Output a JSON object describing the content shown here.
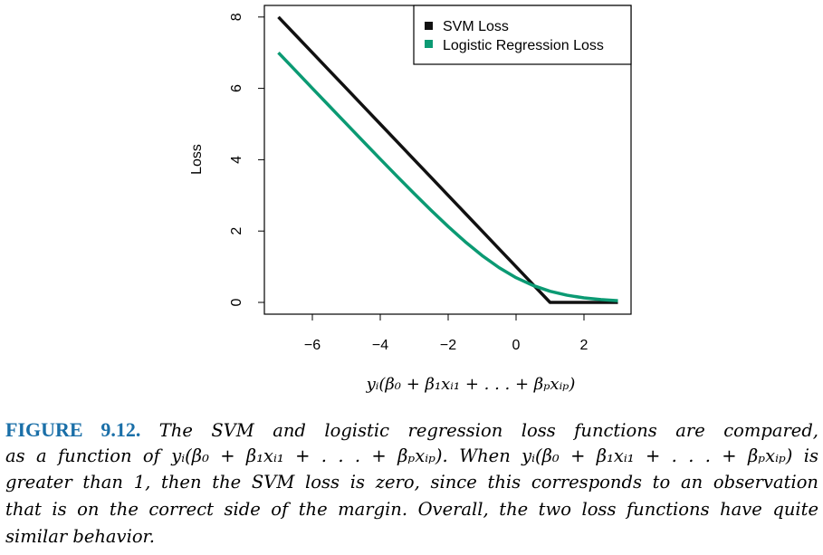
{
  "chart_data": {
    "type": "line",
    "title": "",
    "xlabel": "yᵢ(β₀ + β₁xᵢ₁ + . . . + βₚxᵢₚ)",
    "ylabel": "Loss",
    "xlim": [
      -7.4,
      3.4
    ],
    "ylim": [
      -0.3,
      8.35
    ],
    "xticks": [
      -6,
      -4,
      -2,
      0,
      2
    ],
    "xtick_labels": [
      "−6",
      "−4",
      "−2",
      "0",
      "2"
    ],
    "yticks": [
      0,
      2,
      4,
      6,
      8
    ],
    "ytick_labels": [
      "0",
      "2",
      "4",
      "6",
      "8"
    ],
    "grid": false,
    "legend_position": "top-right",
    "x": [
      -7,
      -6.5,
      -6,
      -5.5,
      -5,
      -4.5,
      -4,
      -3.5,
      -3,
      -2.5,
      -2,
      -1.5,
      -1,
      -0.5,
      0,
      0.5,
      1,
      1.5,
      2,
      2.5,
      3
    ],
    "series": [
      {
        "name": "SVM Loss",
        "color": "#111111",
        "values": [
          8,
          7.5,
          7,
          6.5,
          6,
          5.5,
          5,
          4.5,
          4,
          3.5,
          3,
          2.5,
          2,
          1.5,
          1,
          0.5,
          0,
          0,
          0,
          0,
          0
        ]
      },
      {
        "name": "Logistic Regression Loss",
        "color": "#0b9a73",
        "values": [
          7.001,
          6.502,
          6.002,
          5.504,
          5.007,
          4.511,
          4.018,
          3.53,
          3.049,
          2.579,
          2.127,
          1.701,
          1.313,
          0.974,
          0.693,
          0.474,
          0.313,
          0.201,
          0.127,
          0.079,
          0.049
        ]
      }
    ]
  },
  "caption": {
    "label": "FIGURE 9.12.",
    "lines": [
      "The SVM and logistic regression loss functions are compared,",
      "as a function of yᵢ(β₀ + β₁xᵢ₁ + . . . + βₚxᵢₚ). When yᵢ(β₀ + β₁xᵢ₁ + . . . + βₚxᵢₚ) is",
      "greater than 1, then the SVM loss is zero, since this corresponds to an observation",
      "that is on the correct side of the margin. Overall, the two loss functions have quite",
      "similar behavior."
    ]
  }
}
